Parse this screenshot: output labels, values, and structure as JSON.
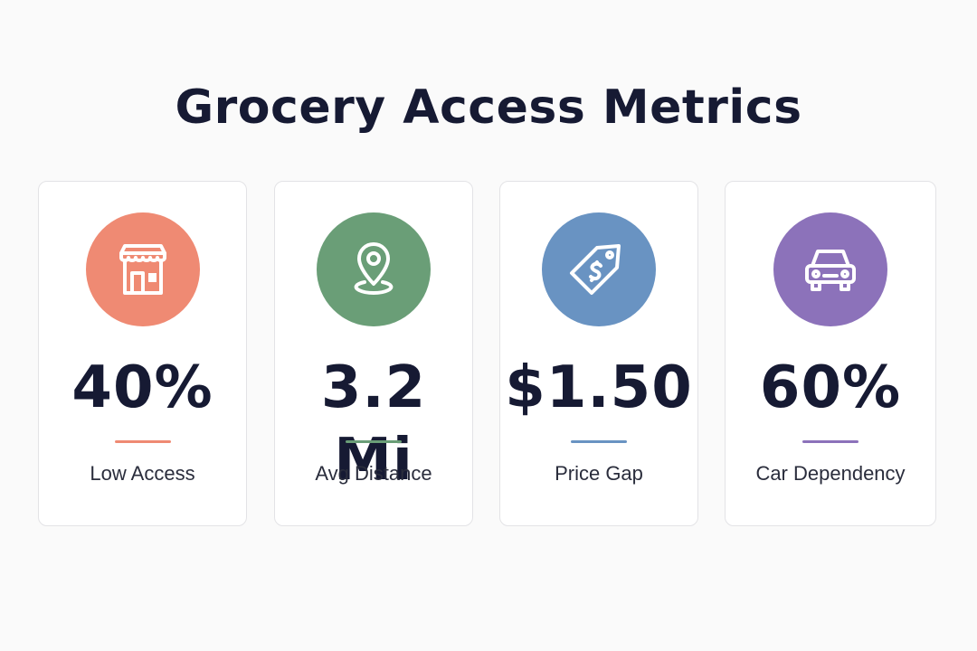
{
  "title": "Grocery Access Metrics",
  "metrics": [
    {
      "value": "40%",
      "label": "Low Access",
      "icon": "storefront-icon",
      "color": "#ef8a73"
    },
    {
      "value": "3.2 Mi",
      "label": "Avg Distance",
      "icon": "location-pin-icon",
      "color": "#6a9e77"
    },
    {
      "value": "$1.50",
      "label": "Price Gap",
      "icon": "price-tag-icon",
      "color": "#6993c2"
    },
    {
      "value": "60%",
      "label": "Car Dependency",
      "icon": "car-icon",
      "color": "#8c72ba"
    }
  ]
}
